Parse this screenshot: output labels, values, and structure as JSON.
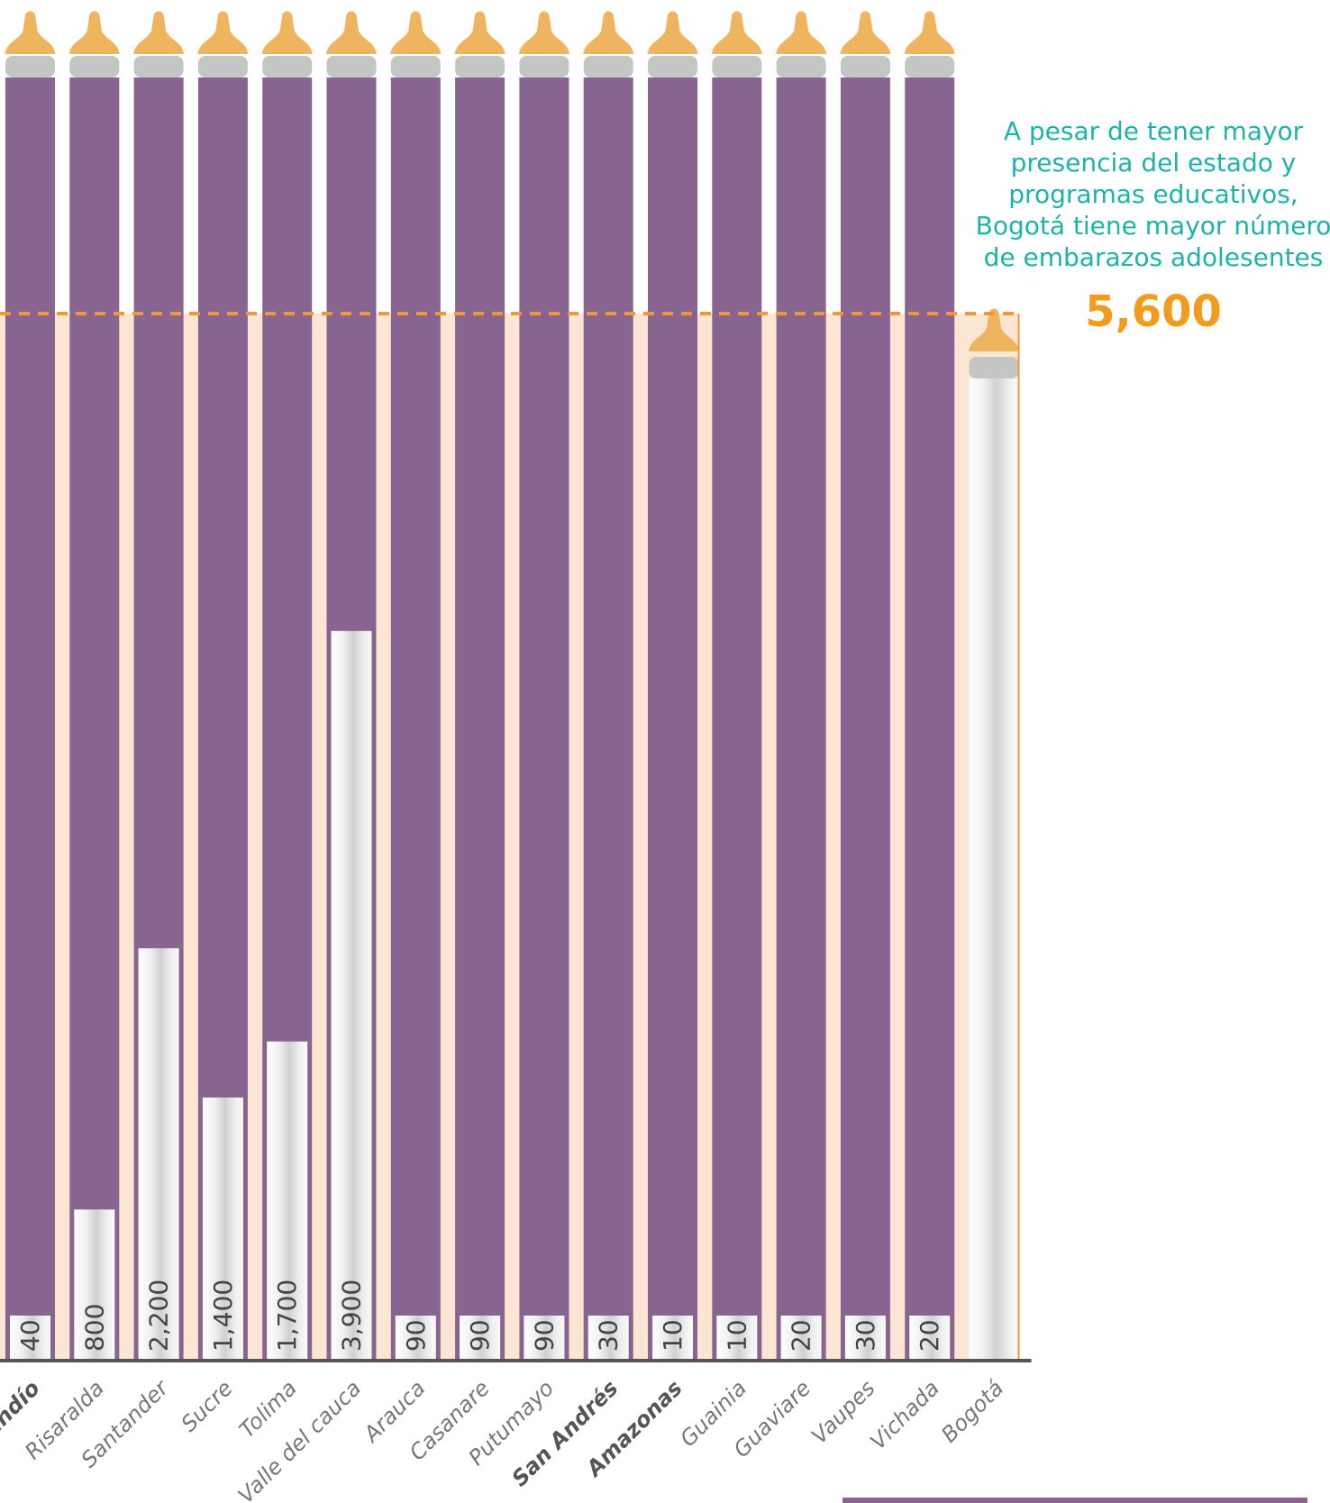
{
  "annotation": {
    "lines": [
      "A pesar de tener mayor",
      "presencia del estado y",
      "programas educativos,",
      "Bogotá tiene mayor número",
      "de embarazos adolesentes"
    ],
    "value": "5,600"
  },
  "colors": {
    "bottle": "#886491",
    "milk": "#f1f1f1",
    "highlight_band": "#fbe6d4",
    "nipple": "#eeb55e",
    "cap": "#c3c6c5",
    "dashed_line": "#f0973a",
    "annotation_text": "#1db3a6",
    "annotation_value": "#f29b1d",
    "axis": "#555555",
    "labels": "#777777"
  },
  "chart_data": {
    "type": "bar",
    "title": "",
    "xlabel": "",
    "ylabel": "",
    "ylim": [
      0,
      5600
    ],
    "reference_line": 5600,
    "categories": [
      "Quindío",
      "Risaralda",
      "Santander",
      "Sucre",
      "Tolima",
      "Valle del cauca",
      "Arauca",
      "Casanare",
      "Putumayo",
      "San Andrés",
      "Amazonas",
      "Guainia",
      "Guaviare",
      "Vaupes",
      "Vichada",
      "Bogotá"
    ],
    "bold_categories": [
      "Quindío",
      "San Andrés",
      "Amazonas"
    ],
    "values": [
      40,
      800,
      2200,
      1400,
      1700,
      3900,
      90,
      90,
      90,
      30,
      10,
      10,
      20,
      30,
      20,
      5600
    ],
    "value_labels": [
      "40",
      "800",
      "2,200",
      "1,400",
      "1,700",
      "3,900",
      "90",
      "90",
      "90",
      "30",
      "10",
      "10",
      "20",
      "30",
      "20",
      ""
    ]
  }
}
